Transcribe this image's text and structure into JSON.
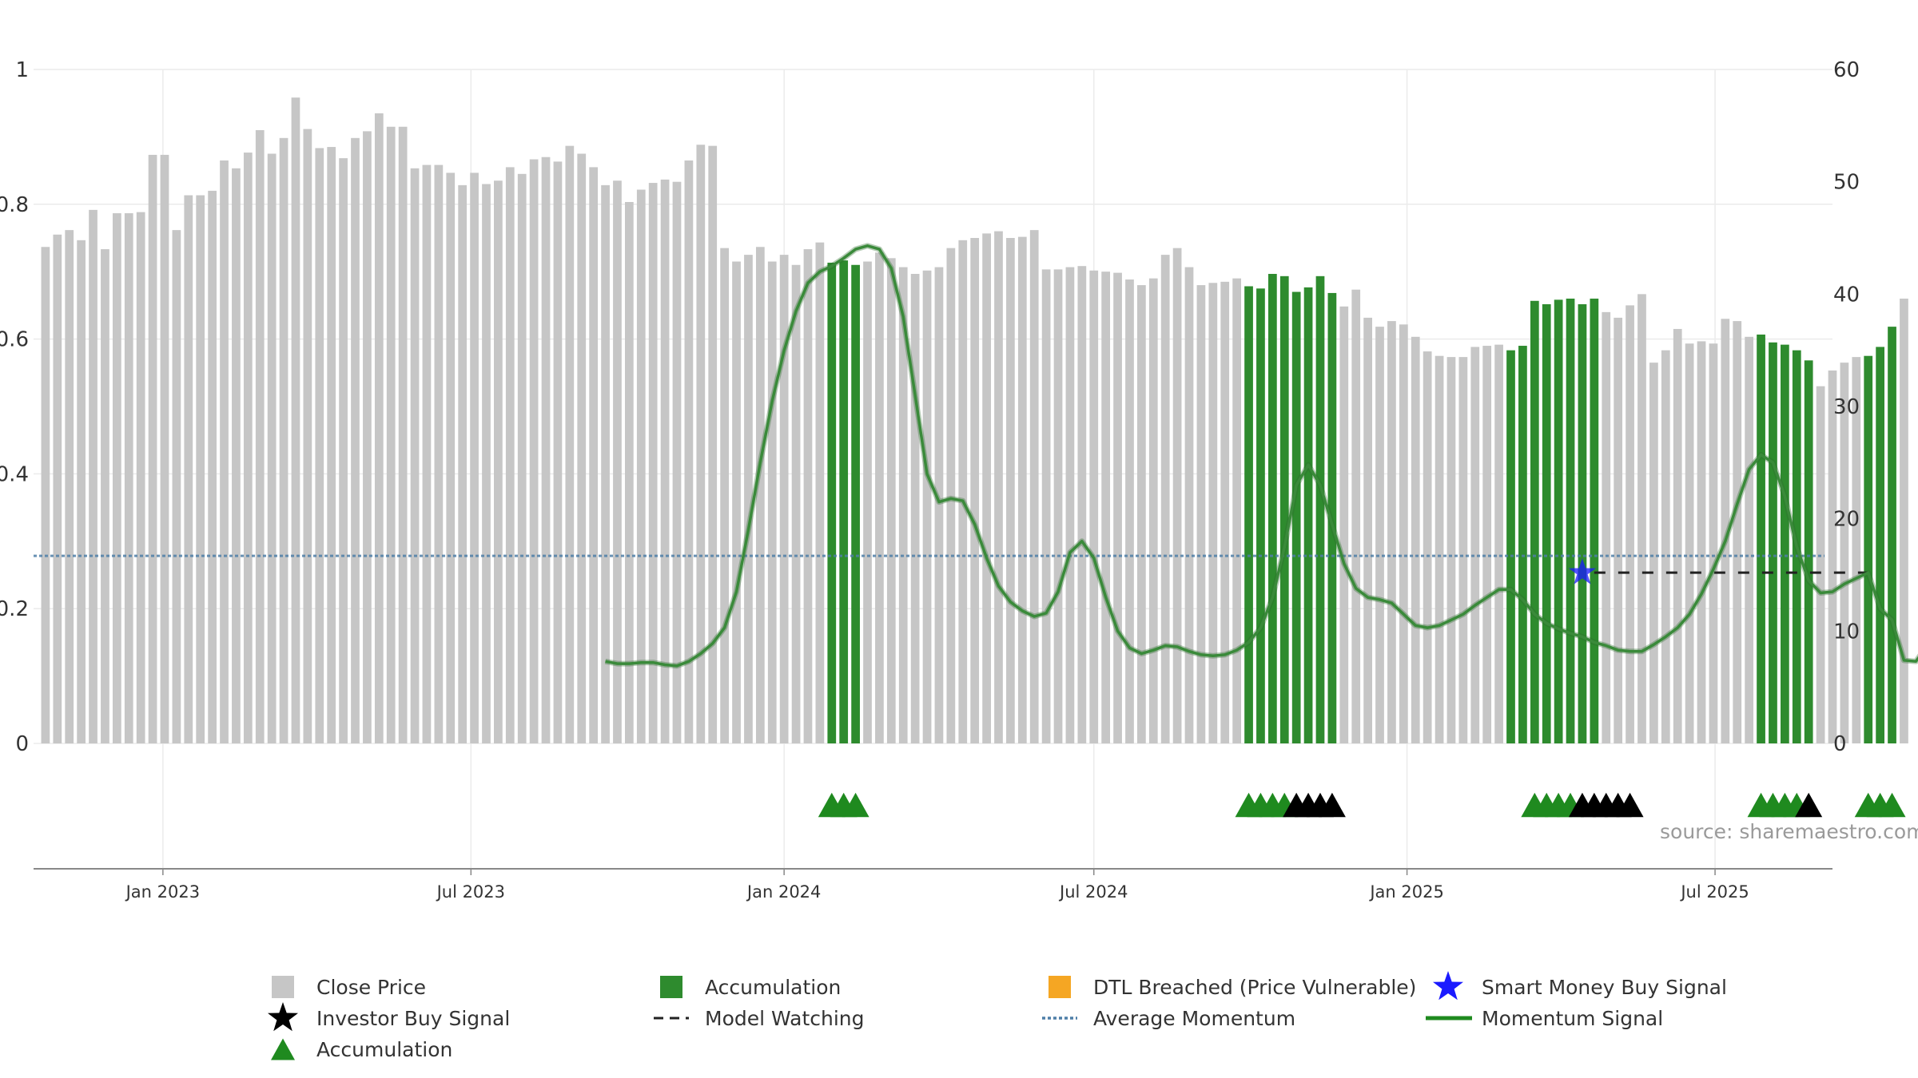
{
  "source_text": "source: sharemaestro.com",
  "colors": {
    "close_price": "#c6c6c6",
    "accumulation": "#2e8b2e",
    "dtl": "#f5a623",
    "smart_money": "#1a1aff",
    "investor": "#000000",
    "avg_momentum": "#4f7fa8",
    "momentum": "#3a8a3a",
    "grid": "#ebebeb",
    "axis": "#888888"
  },
  "chart_data": {
    "type": "bar",
    "x_axis": {
      "range": [
        "2022-10-17",
        "2025-09-08"
      ],
      "tick_labels": [
        {
          "date": "2023-01-01",
          "label": "Jan 2023"
        },
        {
          "date": "2023-07-01",
          "label": "Jul 2023"
        },
        {
          "date": "2024-01-01",
          "label": "Jan 2024"
        },
        {
          "date": "2024-07-01",
          "label": "Jul 2024"
        },
        {
          "date": "2025-01-01",
          "label": "Jan 2025"
        },
        {
          "date": "2025-07-01",
          "label": "Jul 2025"
        }
      ]
    },
    "y_left": {
      "range": [
        0,
        1
      ],
      "ticks": [
        "0",
        "0.2",
        "0.4",
        "0.6",
        "0.8",
        "1"
      ],
      "tick_values": [
        0,
        0.2,
        0.4,
        0.6,
        0.8,
        1
      ]
    },
    "y_right": {
      "range": [
        0,
        60
      ],
      "ticks": [
        "0",
        "10",
        "20",
        "30",
        "40",
        "50",
        "60"
      ],
      "tick_values": [
        0,
        10,
        20,
        30,
        40,
        50,
        60
      ]
    },
    "grid": true,
    "week_start": "2022-10-24",
    "close_price": [
      44.2,
      45.3,
      45.7,
      44.8,
      47.5,
      44.0,
      47.2,
      47.2,
      47.3,
      52.4,
      52.4,
      45.7,
      48.8,
      48.8,
      49.2,
      51.9,
      51.2,
      52.6,
      54.6,
      52.5,
      53.9,
      57.5,
      54.7,
      53.0,
      53.1,
      52.1,
      53.9,
      54.5,
      56.1,
      54.9,
      54.9,
      51.2,
      51.5,
      51.5,
      50.8,
      49.7,
      50.8,
      49.8,
      50.1,
      51.3,
      50.7,
      52.0,
      52.2,
      51.8,
      53.2,
      52.5,
      51.3,
      49.7,
      50.1,
      48.2,
      49.3,
      49.9,
      50.2,
      50.0,
      51.9,
      53.3,
      53.2,
      44.1,
      42.9,
      43.5,
      44.2,
      42.9,
      43.5,
      42.6,
      44.0,
      44.6,
      42.8,
      43.0,
      42.6,
      42.9,
      43.7,
      43.2,
      42.4,
      41.8,
      42.1,
      42.4,
      44.1,
      44.8,
      45.0,
      45.4,
      45.6,
      45.0,
      45.1,
      45.7,
      42.2,
      42.2,
      42.4,
      42.5,
      42.1,
      42.0,
      41.9,
      41.3,
      40.8,
      41.4,
      43.5,
      44.1,
      42.4,
      40.8,
      41.0,
      41.1,
      41.4,
      40.7,
      40.5,
      41.8,
      41.6,
      40.2,
      40.6,
      41.6,
      40.1,
      38.9,
      40.4,
      37.9,
      37.1,
      37.6,
      37.3,
      36.2,
      34.9,
      34.5,
      34.4,
      34.4,
      35.3,
      35.4,
      35.5,
      35.0,
      35.4,
      39.4,
      39.1,
      39.5,
      39.6,
      39.1,
      39.6,
      38.4,
      37.9,
      39.0,
      40.0,
      33.9,
      35.0,
      36.9,
      35.6,
      35.8,
      35.6,
      37.8,
      37.6,
      36.2,
      36.4,
      35.7,
      35.5,
      35.0,
      34.1,
      31.8,
      33.2,
      33.9,
      34.4,
      34.5,
      35.3,
      37.1,
      39.6
    ],
    "accumulation_weeks": [
      {
        "start": 66,
        "end": 68
      },
      {
        "start": 101,
        "end": 108
      },
      {
        "start": 123,
        "end": 130
      },
      {
        "start": 144,
        "end": 148
      },
      {
        "start": 153,
        "end": 155
      }
    ],
    "momentum": [
      7.3,
      7.1,
      7.1,
      7.2,
      7.2,
      7.0,
      6.9,
      7.3,
      8.0,
      8.9,
      10.3,
      13.5,
      19.0,
      25.0,
      30.5,
      35.0,
      38.5,
      41.0,
      42.0,
      42.5,
      43.2,
      44.0,
      44.3,
      44.0,
      42.3,
      38.0,
      31.0,
      24.0,
      21.5,
      21.8,
      21.6,
      19.5,
      16.5,
      14.0,
      12.6,
      11.8,
      11.3,
      11.6,
      13.5,
      17.0,
      18.0,
      16.5,
      13.0,
      10.0,
      8.5,
      8.0,
      8.3,
      8.7,
      8.6,
      8.2,
      7.9,
      7.8,
      7.9,
      8.3,
      9.0,
      10.3,
      13.0,
      17.5,
      23.0,
      24.8,
      23.0,
      19.5,
      16.0,
      13.8,
      13.0,
      12.8,
      12.5,
      11.5,
      10.5,
      10.3,
      10.5,
      11.0,
      11.5,
      12.3,
      13.0,
      13.7,
      13.7,
      12.8,
      11.5,
      10.7,
      10.2,
      9.8,
      9.5,
      9.0,
      8.7,
      8.3,
      8.2,
      8.2,
      8.8,
      9.5,
      10.3,
      11.5,
      13.3,
      15.5,
      18.0,
      21.3,
      24.4,
      25.7,
      25.0,
      22.0,
      17.5,
      14.5,
      13.4,
      13.5,
      14.2,
      14.7,
      15.2,
      12.0,
      11.0,
      7.4,
      7.3,
      8.8,
      9.3,
      11.0
    ],
    "momentum_start": 47,
    "average_momentum": 16.7,
    "model_watching": {
      "value": 15.2,
      "start": 130,
      "end": 153
    },
    "smart_money_buy_signal": [
      {
        "week": 129,
        "value": 15.2
      }
    ],
    "accumulation_markers": [
      66,
      67,
      68,
      101,
      102,
      103,
      104,
      125,
      126,
      127,
      128,
      144,
      145,
      146,
      147,
      153,
      154,
      155
    ],
    "investor_buy_markers": [
      105,
      106,
      107,
      108,
      129,
      130,
      131,
      132,
      133,
      148
    ],
    "legend": [
      {
        "key": "close",
        "label": "Close Price"
      },
      {
        "key": "accum-bar",
        "label": "Accumulation"
      },
      {
        "key": "dtl",
        "label": "DTL Breached (Price Vulnerable)"
      },
      {
        "key": "smart",
        "label": "Smart Money Buy Signal"
      },
      {
        "key": "investor",
        "label": "Investor Buy Signal"
      },
      {
        "key": "watching",
        "label": "Model Watching"
      },
      {
        "key": "avg",
        "label": "Average Momentum"
      },
      {
        "key": "momentum",
        "label": "Momentum Signal"
      },
      {
        "key": "accum-tri",
        "label": "Accumulation"
      }
    ]
  }
}
